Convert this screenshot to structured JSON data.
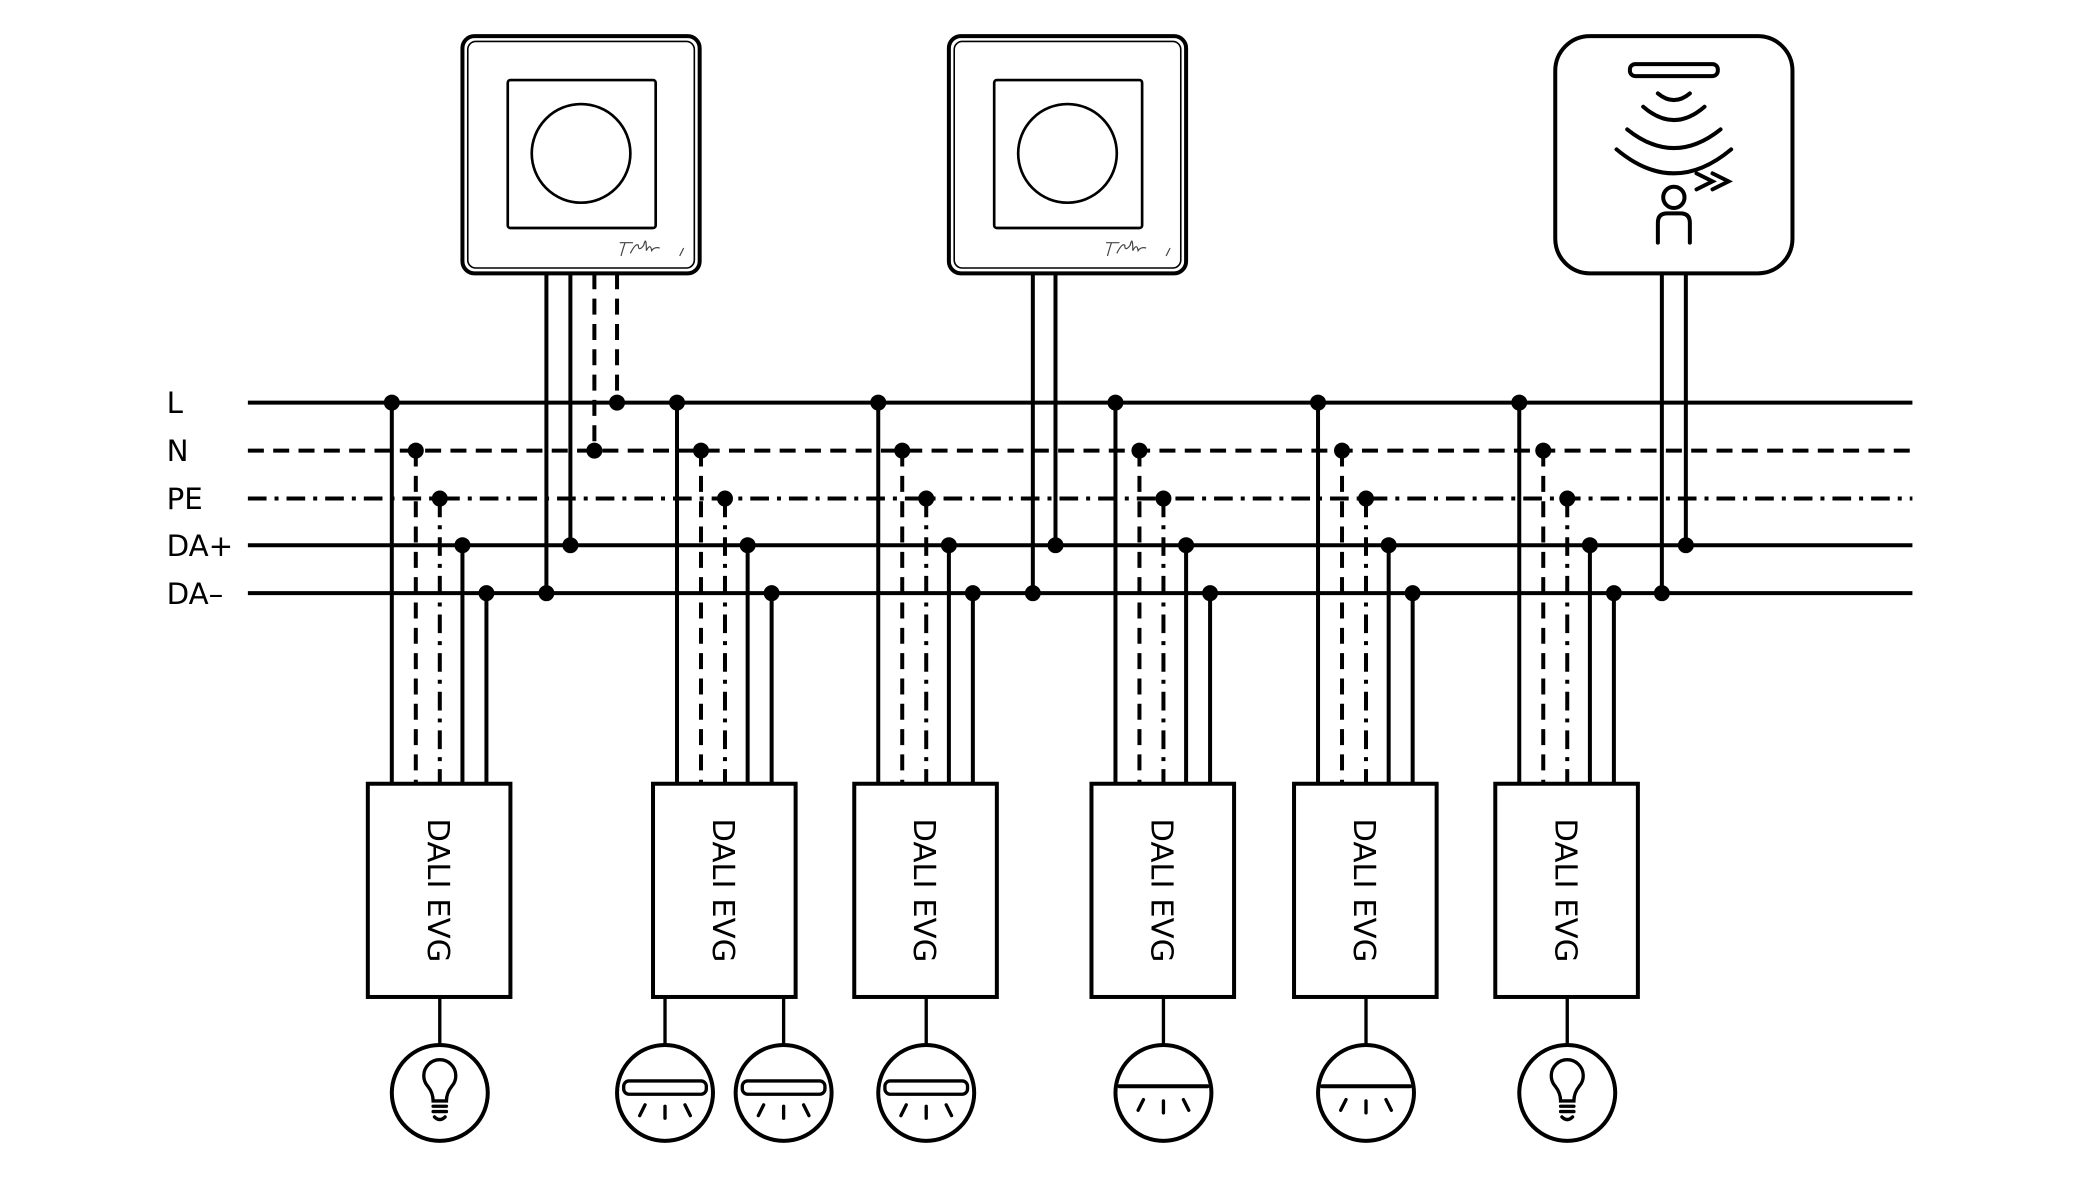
{
  "bus_lines": [
    {
      "label": "L",
      "style": "solid"
    },
    {
      "label": "N",
      "style": "dashed"
    },
    {
      "label": "PE",
      "style": "dash-dot"
    },
    {
      "label": "DA+",
      "style": "solid"
    },
    {
      "label": "DA–",
      "style": "solid"
    }
  ],
  "controllers": [
    {
      "type": "rotary-dimmer",
      "icon": "rotary-dimmer-icon",
      "logo": "Feller",
      "connections": [
        "DA–",
        "DA+",
        "N",
        "L"
      ]
    },
    {
      "type": "rotary-dimmer",
      "icon": "rotary-dimmer-icon",
      "logo": "Feller",
      "connections": [
        "DA–",
        "DA+"
      ]
    },
    {
      "type": "presence-sensor",
      "icon": "presence-sensor-icon",
      "connections": [
        "DA–",
        "DA+"
      ]
    }
  ],
  "ballasts": [
    {
      "label": "DALI EVG",
      "lamps": [
        "bulb-icon"
      ]
    },
    {
      "label": "DALI EVG",
      "lamps": [
        "linear-lamp-icon",
        "linear-lamp-icon"
      ]
    },
    {
      "label": "DALI EVG",
      "lamps": [
        "linear-lamp-icon"
      ]
    },
    {
      "label": "DALI EVG",
      "lamps": [
        "ceiling-light-icon"
      ]
    },
    {
      "label": "DALI EVG",
      "lamps": [
        "ceiling-light-icon"
      ]
    },
    {
      "label": "DALI EVG",
      "lamps": [
        "bulb-icon"
      ]
    }
  ],
  "colors": {
    "stroke": "#000000",
    "background": "#ffffff"
  }
}
